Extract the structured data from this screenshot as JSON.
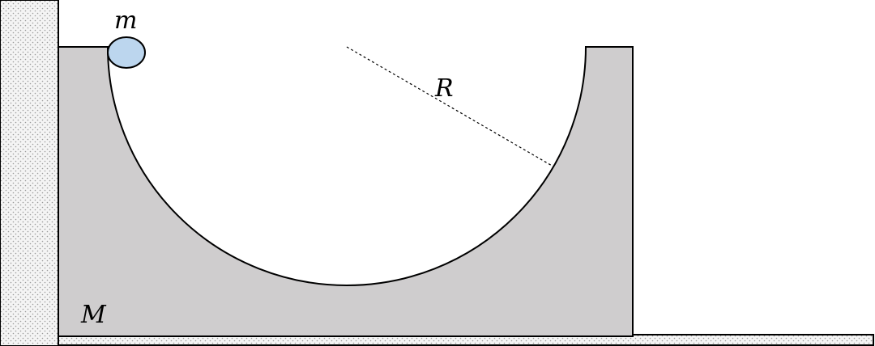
{
  "labels": {
    "small_mass": "m",
    "block_mass": "M",
    "radius": "R"
  },
  "colors": {
    "block_fill": "#cfcdce",
    "ball_fill": "#bcd6ee",
    "wall_fill": "#f2f2f2",
    "wall_dots": "#9a9a9a",
    "outline": "#000000",
    "background": "#ffffff"
  }
}
